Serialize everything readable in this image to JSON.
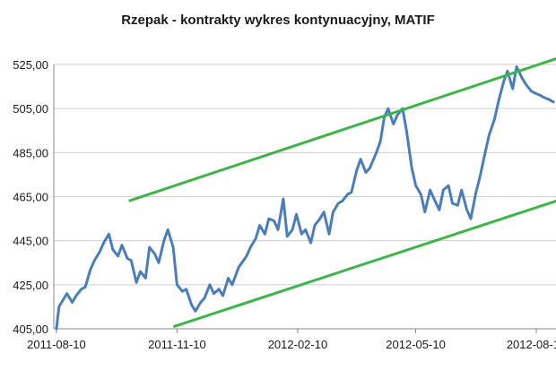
{
  "chart_data": {
    "type": "line",
    "title": "Rzepak - kontrakty wykres kontynuacyjny, MATIF",
    "xlabel": "",
    "ylabel": "",
    "ylim": [
      405,
      525
    ],
    "xlim": [
      "2011-08-08",
      "2012-08-25"
    ],
    "y_ticks": [
      {
        "value": 405,
        "label": "405,00"
      },
      {
        "value": 425,
        "label": "425,00"
      },
      {
        "value": 445,
        "label": "445,00"
      },
      {
        "value": 465,
        "label": "465,00"
      },
      {
        "value": 485,
        "label": "485,00"
      },
      {
        "value": 505,
        "label": "505,00"
      },
      {
        "value": 525,
        "label": "525,00"
      }
    ],
    "x_ticks": [
      {
        "value": "2011-08-10",
        "label": "2011-08-10"
      },
      {
        "value": "2011-11-10",
        "label": "2011-11-10"
      },
      {
        "value": "2012-02-10",
        "label": "2012-02-10"
      },
      {
        "value": "2012-05-10",
        "label": "2012-05-10"
      },
      {
        "value": "2012-08-10",
        "label": "2012-08-10"
      }
    ],
    "grid": true,
    "legend": "none",
    "colors": {
      "price": "#4a7ebb",
      "channel": "#3cb54a",
      "grid": "#cfcfcf"
    },
    "series": [
      {
        "type": "line",
        "x": [
          "2011-08-10",
          "2011-08-12",
          "2011-08-15",
          "2011-08-18",
          "2011-08-22",
          "2011-08-25",
          "2011-08-29",
          "2011-09-01",
          "2011-09-05",
          "2011-09-08",
          "2011-09-12",
          "2011-09-15",
          "2011-09-19",
          "2011-09-22",
          "2011-09-26",
          "2011-09-29",
          "2011-10-03",
          "2011-10-06",
          "2011-10-10",
          "2011-10-13",
          "2011-10-17",
          "2011-10-20",
          "2011-10-24",
          "2011-10-27",
          "2011-10-31",
          "2011-11-03",
          "2011-11-07",
          "2011-11-10",
          "2011-11-14",
          "2011-11-17",
          "2011-11-21",
          "2011-11-24",
          "2011-11-28",
          "2011-12-01",
          "2011-12-05",
          "2011-12-08",
          "2011-12-12",
          "2011-12-15",
          "2011-12-19",
          "2011-12-22",
          "2011-12-27",
          "2012-01-02",
          "2012-01-05",
          "2012-01-09",
          "2012-01-12",
          "2012-01-16",
          "2012-01-19",
          "2012-01-23",
          "2012-01-26",
          "2012-01-30",
          "2012-02-02",
          "2012-02-06",
          "2012-02-09",
          "2012-02-13",
          "2012-02-16",
          "2012-02-20",
          "2012-02-23",
          "2012-02-27",
          "2012-03-01",
          "2012-03-05",
          "2012-03-08",
          "2012-03-12",
          "2012-03-15",
          "2012-03-19",
          "2012-03-22",
          "2012-03-26",
          "2012-03-29",
          "2012-04-02",
          "2012-04-05",
          "2012-04-10",
          "2012-04-13",
          "2012-04-16",
          "2012-04-19",
          "2012-04-23",
          "2012-04-26",
          "2012-04-30",
          "2012-05-03",
          "2012-05-07",
          "2012-05-10",
          "2012-05-14",
          "2012-05-17",
          "2012-05-21",
          "2012-05-24",
          "2012-05-28",
          "2012-05-31",
          "2012-06-04",
          "2012-06-07",
          "2012-06-11",
          "2012-06-14",
          "2012-06-18",
          "2012-06-21",
          "2012-06-25",
          "2012-06-28",
          "2012-07-02",
          "2012-07-05",
          "2012-07-09",
          "2012-07-12",
          "2012-07-16",
          "2012-07-19",
          "2012-07-23",
          "2012-07-26",
          "2012-07-30",
          "2012-08-02",
          "2012-08-06",
          "2012-08-09",
          "2012-08-13",
          "2012-08-16",
          "2012-08-20",
          "2012-08-23"
        ],
        "values": [
          405,
          415,
          418,
          421,
          417,
          420,
          423,
          424,
          432,
          436,
          440,
          444,
          448,
          441,
          438,
          443,
          437,
          436,
          426,
          431,
          428,
          442,
          439,
          435,
          445,
          450,
          442,
          425,
          422,
          423,
          416,
          413,
          417,
          419,
          425,
          421,
          423,
          420,
          428,
          425,
          433,
          438,
          442,
          446,
          452,
          448,
          455,
          454,
          450,
          464,
          447,
          450,
          457,
          448,
          450,
          444,
          452,
          455,
          458,
          448,
          458,
          462,
          463,
          466,
          467,
          477,
          482,
          476,
          478,
          485,
          490,
          501,
          505,
          498,
          502,
          505,
          495,
          478,
          470,
          466,
          458,
          468,
          464,
          459,
          468,
          470,
          462,
          461,
          468,
          459,
          455,
          467,
          474,
          485,
          493,
          500,
          508,
          517,
          522,
          514,
          524,
          519,
          516,
          513,
          512,
          511,
          510,
          509,
          508
        ]
      },
      {
        "type": "line",
        "name": "",
        "x": [
          "2011-10-05",
          "2012-08-25"
        ],
        "values": [
          463.2,
          527.6
        ]
      },
      {
        "type": "line",
        "name": "",
        "x": [
          "2011-11-08",
          "2012-08-25"
        ],
        "values": [
          406.1,
          463.0
        ]
      }
    ]
  }
}
